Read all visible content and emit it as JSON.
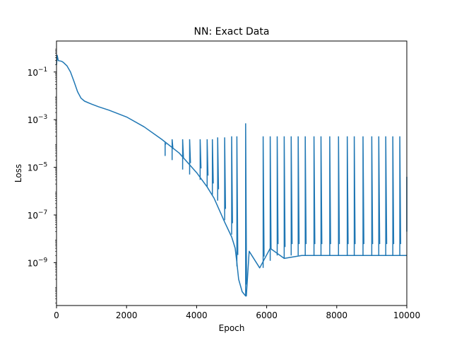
{
  "chart_data": {
    "type": "line",
    "title": "NN: Exact Data",
    "xlabel": "Epoch",
    "ylabel": "Loss",
    "xlim": [
      0,
      10000
    ],
    "ylim_log10": [
      -10.8,
      0.3
    ],
    "yscale": "log",
    "grid": false,
    "x_ticks": [
      {
        "value": 0,
        "label": "0"
      },
      {
        "value": 2000,
        "label": "2000"
      },
      {
        "value": 4000,
        "label": "4000"
      },
      {
        "value": 6000,
        "label": "6000"
      },
      {
        "value": 8000,
        "label": "8000"
      },
      {
        "value": 10000,
        "label": "10000"
      }
    ],
    "y_ticks": [
      {
        "exp": -1,
        "base": "10",
        "sup": "−1"
      },
      {
        "exp": -3,
        "base": "10",
        "sup": "−3"
      },
      {
        "exp": -5,
        "base": "10",
        "sup": "−5"
      },
      {
        "exp": -7,
        "base": "10",
        "sup": "−7"
      },
      {
        "exp": -9,
        "base": "10",
        "sup": "−9"
      }
    ],
    "series": [
      {
        "color": "#1f77b4",
        "x": [
          0,
          20,
          50,
          150,
          200,
          300,
          400,
          500,
          600,
          700,
          800,
          1000,
          1200,
          1500,
          2000,
          2500,
          3000,
          3500,
          4000,
          4300,
          4500,
          4800,
          5000,
          5050,
          5100,
          5150,
          5200,
          5300,
          5400,
          5420,
          5500,
          5800,
          6100,
          6500,
          7000,
          7500,
          8000,
          8500,
          9000,
          9500,
          9900,
          10000
        ],
        "y": [
          0.2,
          0.5,
          0.3,
          0.28,
          0.25,
          0.18,
          0.1,
          0.04,
          0.015,
          0.008,
          0.006,
          0.0045,
          0.0035,
          0.0025,
          0.0013,
          0.0005,
          0.00015,
          4e-05,
          6e-06,
          1.5e-06,
          5e-07,
          5e-08,
          1.2e-08,
          7e-09,
          4e-09,
          1e-09,
          2e-10,
          6e-11,
          4e-11,
          4e-11,
          3e-09,
          6e-10,
          4e-09,
          1.5e-09,
          2e-09,
          2e-09,
          2e-09,
          2e-09,
          2e-09,
          2e-09,
          2e-09,
          2e-09
        ]
      }
    ],
    "spikes": [
      {
        "x": 3100,
        "peak": 0.0001,
        "base": 3e-05,
        "spacing": 25
      },
      {
        "x": 3300,
        "peak": 0.00015,
        "base": 2e-05,
        "spacing": 25
      },
      {
        "x": 3600,
        "peak": 0.00015,
        "base": 8e-06,
        "spacing": 25
      },
      {
        "x": 3800,
        "peak": 0.00015,
        "base": 5e-06,
        "spacing": 25
      },
      {
        "x": 4100,
        "peak": 0.00015,
        "base": 3e-06,
        "spacing": 25
      },
      {
        "x": 4300,
        "peak": 0.00015,
        "base": 1.5e-06,
        "spacing": 25
      },
      {
        "x": 4450,
        "peak": 0.00015,
        "base": 7e-07,
        "spacing": 25
      },
      {
        "x": 4600,
        "peak": 0.00018,
        "base": 4e-07,
        "spacing": 25
      },
      {
        "x": 4800,
        "peak": 0.00018,
        "base": 6e-08,
        "spacing": 25
      },
      {
        "x": 5000,
        "peak": 0.0002,
        "base": 1.5e-08,
        "spacing": 25
      },
      {
        "x": 5150,
        "peak": 0.0002,
        "base": 7e-10,
        "spacing": 25
      },
      {
        "x": 5400,
        "peak": 0.0007,
        "base": 4e-11,
        "spacing": 25
      },
      {
        "x": 5900,
        "peak": 0.0002,
        "base": 6e-10,
        "spacing": 25
      },
      {
        "x": 6100,
        "peak": 0.0002,
        "base": 1.2e-09,
        "spacing": 25
      },
      {
        "x": 6300,
        "peak": 0.0002,
        "base": 2e-09,
        "spacing": 25
      },
      {
        "x": 6500,
        "peak": 0.0002,
        "base": 1.5e-09,
        "spacing": 25
      },
      {
        "x": 6700,
        "peak": 0.0002,
        "base": 2e-09,
        "spacing": 25
      },
      {
        "x": 6900,
        "peak": 0.0002,
        "base": 2e-09,
        "spacing": 25
      },
      {
        "x": 7100,
        "peak": 0.0002,
        "base": 2e-09,
        "spacing": 25
      },
      {
        "x": 7350,
        "peak": 0.0002,
        "base": 2e-09,
        "spacing": 25
      },
      {
        "x": 7550,
        "peak": 0.0002,
        "base": 2e-09,
        "spacing": 25
      },
      {
        "x": 7800,
        "peak": 0.0002,
        "base": 2e-09,
        "spacing": 25
      },
      {
        "x": 8050,
        "peak": 0.0002,
        "base": 2e-09,
        "spacing": 25
      },
      {
        "x": 8300,
        "peak": 0.0002,
        "base": 2e-09,
        "spacing": 25
      },
      {
        "x": 8500,
        "peak": 0.0002,
        "base": 2e-09,
        "spacing": 25
      },
      {
        "x": 8750,
        "peak": 0.0002,
        "base": 2e-09,
        "spacing": 25
      },
      {
        "x": 9000,
        "peak": 0.0002,
        "base": 2e-09,
        "spacing": 25
      },
      {
        "x": 9200,
        "peak": 0.0002,
        "base": 2e-09,
        "spacing": 25
      },
      {
        "x": 9400,
        "peak": 0.0002,
        "base": 2e-09,
        "spacing": 25
      },
      {
        "x": 9600,
        "peak": 0.0002,
        "base": 2e-09,
        "spacing": 25
      },
      {
        "x": 9800,
        "peak": 0.0002,
        "base": 2e-09,
        "spacing": 25
      },
      {
        "x": 10000,
        "peak": 4e-06,
        "base": 2e-08,
        "spacing": 25
      }
    ]
  }
}
